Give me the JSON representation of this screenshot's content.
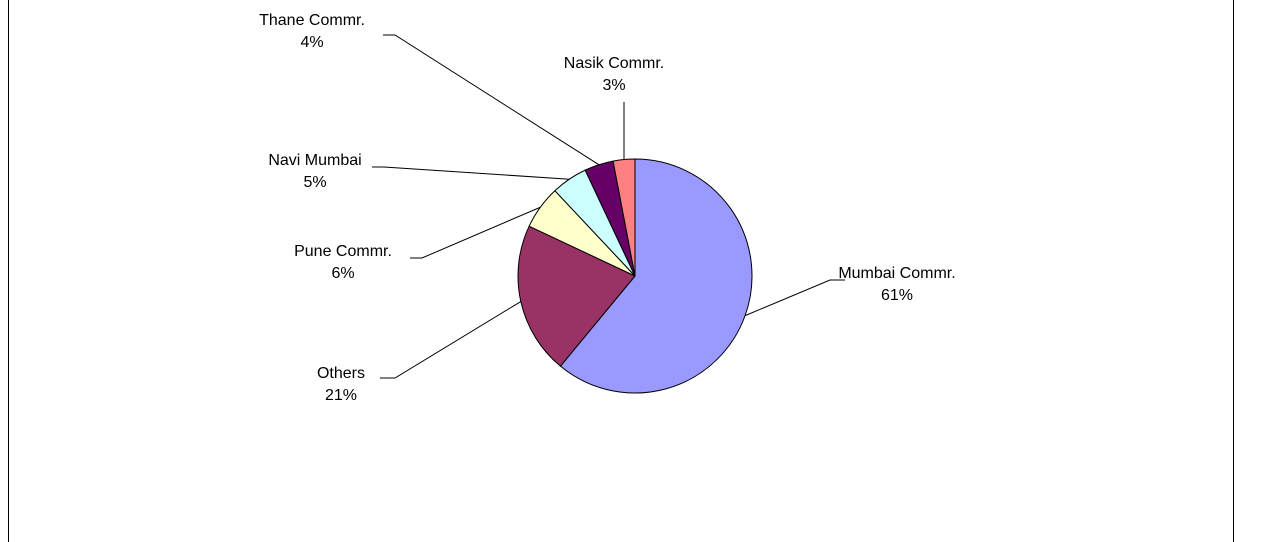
{
  "chart_data": {
    "type": "pie",
    "start_angle_deg": 0,
    "direction": "clockwise",
    "slices": [
      {
        "name": "Mumbai Commr.",
        "value": 61,
        "pct_label": "61%",
        "color": "#9999ff"
      },
      {
        "name": "Others",
        "value": 21,
        "pct_label": "21%",
        "color": "#993366"
      },
      {
        "name": "Pune Commr.",
        "value": 6,
        "pct_label": "6%",
        "color": "#ffffcc"
      },
      {
        "name": "Navi Mumbai",
        "value": 5,
        "pct_label": "5%",
        "color": "#ccffff"
      },
      {
        "name": "Thane Commr.",
        "value": 4,
        "pct_label": "4%",
        "color": "#660066"
      },
      {
        "name": "Nasik Commr.",
        "value": 3,
        "pct_label": "3%",
        "color": "#ff8080"
      }
    ]
  }
}
